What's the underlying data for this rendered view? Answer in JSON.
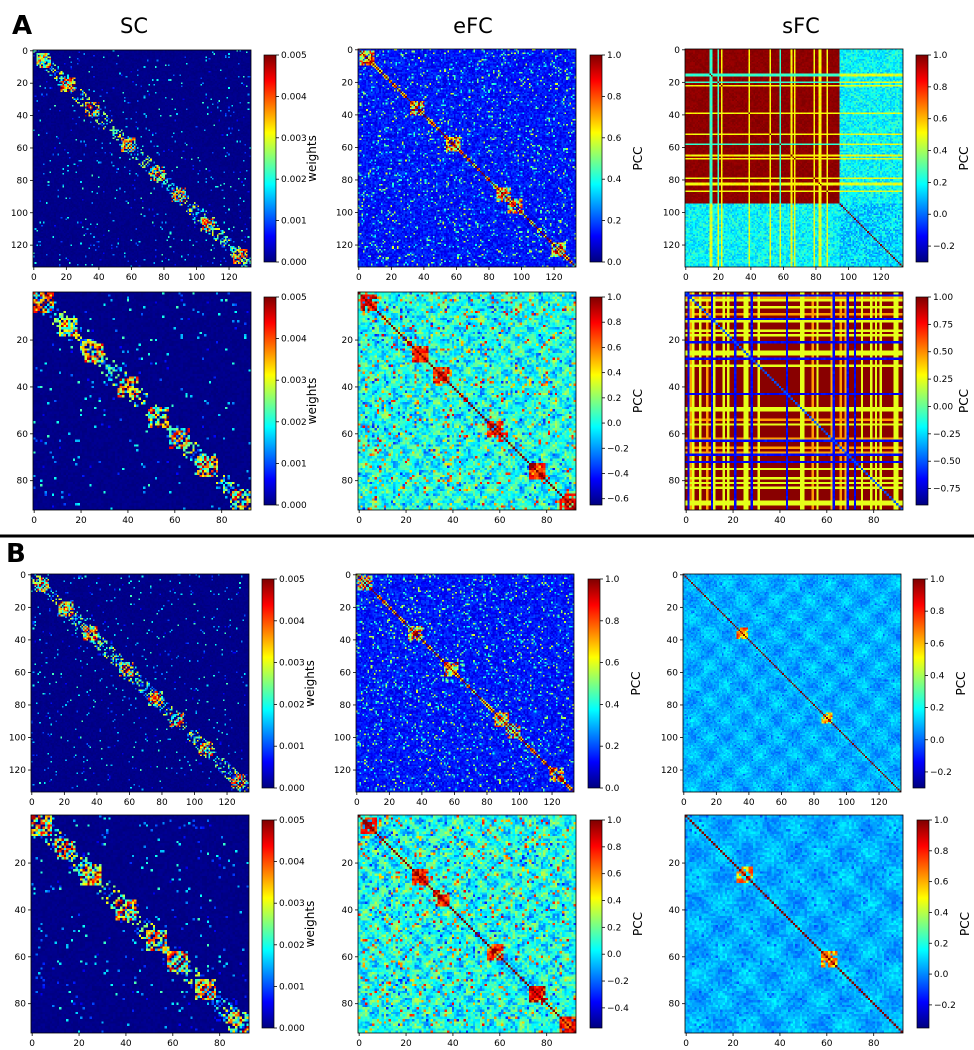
{
  "figure": {
    "panel_letters": [
      "A",
      "B"
    ],
    "column_titles": [
      "SC",
      "eFC",
      "sFC"
    ]
  },
  "colors": {
    "colormap": [
      "#00007f",
      "#0000ff",
      "#007fff",
      "#00ffff",
      "#7fff7f",
      "#ffff00",
      "#ff7f00",
      "#ff0000",
      "#7f0000"
    ],
    "divider": "#000000"
  },
  "chart_data": [
    {
      "type": "heatmap",
      "panel": "A",
      "column": "SC",
      "size": 134,
      "pattern": "sc",
      "x_ticks": [
        "0",
        "20",
        "40",
        "60",
        "80",
        "100",
        "120"
      ],
      "y_ticks": [
        "0",
        "20",
        "40",
        "60",
        "80",
        "100",
        "120"
      ],
      "colorbar": {
        "label": "weights",
        "range": [
          0,
          0.005
        ],
        "ticks": [
          "0.000",
          "0.001",
          "0.002",
          "0.003",
          "0.004",
          "0.005"
        ]
      }
    },
    {
      "type": "heatmap",
      "panel": "A",
      "column": "eFC",
      "size": 134,
      "pattern": "efc_sparse",
      "x_ticks": [
        "0",
        "20",
        "40",
        "60",
        "80",
        "100",
        "120"
      ],
      "y_ticks": [
        "0",
        "20",
        "40",
        "60",
        "80",
        "100",
        "120"
      ],
      "colorbar": {
        "label": "PCC",
        "range": [
          0,
          1.0
        ],
        "ticks": [
          "0.0",
          "0.2",
          "0.4",
          "0.6",
          "0.8",
          "1.0"
        ]
      }
    },
    {
      "type": "heatmap",
      "panel": "A",
      "column": "sFC",
      "size": 134,
      "pattern": "sfc_striped",
      "x_ticks": [
        "0",
        "20",
        "40",
        "60",
        "80",
        "100",
        "120"
      ],
      "y_ticks": [
        "0",
        "20",
        "40",
        "60",
        "80",
        "100",
        "120"
      ],
      "colorbar": {
        "label": "PCC",
        "range": [
          -0.3,
          1.0
        ],
        "ticks": [
          "−0.2",
          "0.0",
          "0.2",
          "0.4",
          "0.6",
          "0.8",
          "1.0"
        ]
      }
    },
    {
      "type": "heatmap",
      "panel": "A",
      "column": "SC",
      "size": 93,
      "pattern": "sc",
      "x_ticks": [
        "0",
        "20",
        "40",
        "60",
        "80"
      ],
      "y_ticks": [
        "20",
        "40",
        "60",
        "80"
      ],
      "colorbar": {
        "label": "weights",
        "range": [
          0,
          0.005
        ],
        "ticks": [
          "0.000",
          "0.001",
          "0.002",
          "0.003",
          "0.004",
          "0.005"
        ]
      }
    },
    {
      "type": "heatmap",
      "panel": "A",
      "column": "eFC",
      "size": 93,
      "pattern": "efc_dense",
      "x_ticks": [
        "0",
        "20",
        "40",
        "60",
        "80"
      ],
      "y_ticks": [
        "20",
        "40",
        "60",
        "80"
      ],
      "colorbar": {
        "label": "PCC",
        "range": [
          -0.65,
          1.0
        ],
        "ticks": [
          "−0.6",
          "−0.4",
          "−0.2",
          "0.0",
          "0.2",
          "0.4",
          "0.6",
          "0.8",
          "1.0"
        ]
      }
    },
    {
      "type": "heatmap",
      "panel": "A",
      "column": "sFC",
      "size": 93,
      "pattern": "sfc_blocks",
      "x_ticks": [
        "0",
        "20",
        "40",
        "60",
        "80"
      ],
      "y_ticks": [
        "20",
        "40",
        "60",
        "80"
      ],
      "colorbar": {
        "label": "PCC",
        "range": [
          -0.9,
          1.0
        ],
        "ticks": [
          "−0.75",
          "−0.50",
          "−0.25",
          "0.00",
          "0.25",
          "0.50",
          "0.75",
          "1.00"
        ]
      }
    },
    {
      "type": "heatmap",
      "panel": "B",
      "column": "SC",
      "size": 134,
      "pattern": "sc",
      "x_ticks": [
        "0",
        "20",
        "40",
        "60",
        "80",
        "100",
        "120"
      ],
      "y_ticks": [
        "0",
        "20",
        "40",
        "60",
        "80",
        "100",
        "120"
      ],
      "colorbar": {
        "label": "weights",
        "range": [
          0,
          0.005
        ],
        "ticks": [
          "0.000",
          "0.001",
          "0.002",
          "0.003",
          "0.004",
          "0.005"
        ]
      }
    },
    {
      "type": "heatmap",
      "panel": "B",
      "column": "eFC",
      "size": 134,
      "pattern": "efc_sparse",
      "x_ticks": [
        "0",
        "20",
        "40",
        "60",
        "80",
        "100",
        "120"
      ],
      "y_ticks": [
        "0",
        "20",
        "40",
        "60",
        "80",
        "100",
        "120"
      ],
      "colorbar": {
        "label": "PCC",
        "range": [
          0,
          1.0
        ],
        "ticks": [
          "0.0",
          "0.2",
          "0.4",
          "0.6",
          "0.8",
          "1.0"
        ]
      }
    },
    {
      "type": "heatmap",
      "panel": "B",
      "column": "sFC",
      "size": 134,
      "pattern": "sfc_noise",
      "x_ticks": [
        "0",
        "20",
        "40",
        "60",
        "80",
        "100",
        "120"
      ],
      "y_ticks": [
        "0",
        "20",
        "40",
        "60",
        "80",
        "100",
        "120"
      ],
      "colorbar": {
        "label": "PCC",
        "range": [
          -0.3,
          1.0
        ],
        "ticks": [
          "−0.2",
          "0.0",
          "0.2",
          "0.4",
          "0.6",
          "0.8",
          "1.0"
        ]
      }
    },
    {
      "type": "heatmap",
      "panel": "B",
      "column": "SC",
      "size": 93,
      "pattern": "sc",
      "x_ticks": [
        "0",
        "20",
        "40",
        "60",
        "80"
      ],
      "y_ticks": [
        "20",
        "40",
        "60",
        "80"
      ],
      "colorbar": {
        "label": "weights",
        "range": [
          0,
          0.005
        ],
        "ticks": [
          "0.000",
          "0.001",
          "0.002",
          "0.003",
          "0.004",
          "0.005"
        ]
      }
    },
    {
      "type": "heatmap",
      "panel": "B",
      "column": "eFC",
      "size": 93,
      "pattern": "efc_dense",
      "x_ticks": [
        "0",
        "20",
        "40",
        "60",
        "80"
      ],
      "y_ticks": [
        "20",
        "40",
        "60",
        "80"
      ],
      "colorbar": {
        "label": "PCC",
        "range": [
          -0.55,
          1.0
        ],
        "ticks": [
          "−0.4",
          "−0.2",
          "0.0",
          "0.2",
          "0.4",
          "0.6",
          "0.8",
          "1.0"
        ]
      }
    },
    {
      "type": "heatmap",
      "panel": "B",
      "column": "sFC",
      "size": 93,
      "pattern": "sfc_noise",
      "x_ticks": [
        "0",
        "20",
        "40",
        "60",
        "80"
      ],
      "y_ticks": [
        "20",
        "40",
        "60",
        "80"
      ],
      "colorbar": {
        "label": "PCC",
        "range": [
          -0.35,
          1.0
        ],
        "ticks": [
          "−0.2",
          "0.0",
          "0.2",
          "0.4",
          "0.6",
          "0.8",
          "1.0"
        ]
      }
    }
  ]
}
